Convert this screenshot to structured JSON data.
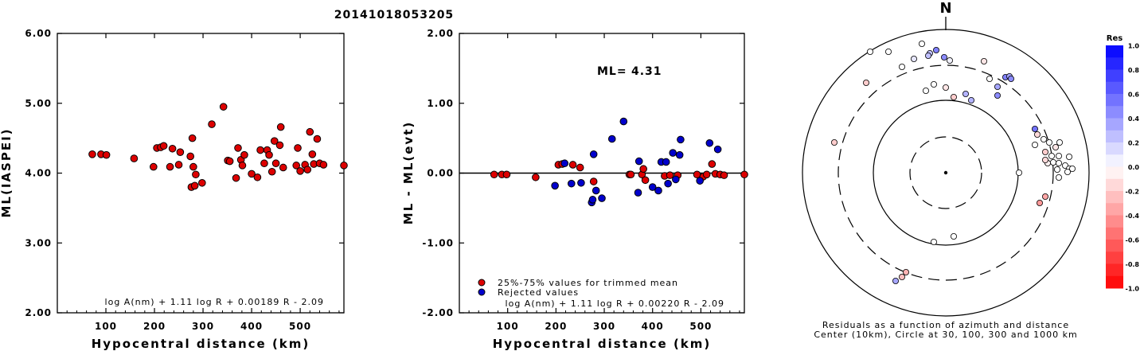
{
  "title": "20141018053205",
  "chart_data": [
    {
      "type": "scatter",
      "id": "left",
      "xlabel": "Hypocentral distance (km)",
      "ylabel": "ML(IASPEI)",
      "xlim": [
        0,
        590
      ],
      "ylim": [
        2.0,
        6.0
      ],
      "xticks": [
        "100",
        "200",
        "300",
        "400",
        "500"
      ],
      "xtick_values": [
        100,
        200,
        300,
        400,
        500
      ],
      "yticks": [
        "2.00",
        "3.00",
        "4.00",
        "5.00",
        "6.00"
      ],
      "ytick_values": [
        2.0,
        3.0,
        4.0,
        5.0,
        6.0
      ],
      "formula": "log A(nm) + 1.11 log R + 0.00189 R - 2.09",
      "color": "#dd0000",
      "points": [
        [
          72,
          4.27
        ],
        [
          90,
          4.27
        ],
        [
          101,
          4.26
        ],
        [
          158,
          4.21
        ],
        [
          198,
          4.09
        ],
        [
          205,
          4.36
        ],
        [
          213,
          4.37
        ],
        [
          219,
          4.39
        ],
        [
          232,
          4.09
        ],
        [
          237,
          4.35
        ],
        [
          250,
          4.12
        ],
        [
          253,
          4.3
        ],
        [
          274,
          4.24
        ],
        [
          276,
          3.8
        ],
        [
          278,
          4.5
        ],
        [
          280,
          4.09
        ],
        [
          283,
          3.82
        ],
        [
          285,
          3.98
        ],
        [
          298,
          3.86
        ],
        [
          318,
          4.7
        ],
        [
          342,
          4.95
        ],
        [
          351,
          4.18
        ],
        [
          355,
          4.17
        ],
        [
          368,
          3.93
        ],
        [
          372,
          4.36
        ],
        [
          378,
          4.19
        ],
        [
          381,
          4.11
        ],
        [
          385,
          4.26
        ],
        [
          400,
          3.99
        ],
        [
          412,
          3.94
        ],
        [
          418,
          4.33
        ],
        [
          426,
          4.14
        ],
        [
          432,
          4.33
        ],
        [
          436,
          4.26
        ],
        [
          442,
          4.02
        ],
        [
          447,
          4.46
        ],
        [
          450,
          4.14
        ],
        [
          458,
          4.4
        ],
        [
          460,
          4.66
        ],
        [
          465,
          4.08
        ],
        [
          492,
          4.11
        ],
        [
          495,
          4.36
        ],
        [
          500,
          4.03
        ],
        [
          510,
          4.12
        ],
        [
          515,
          4.05
        ],
        [
          520,
          4.59
        ],
        [
          525,
          4.27
        ],
        [
          528,
          4.13
        ],
        [
          535,
          4.49
        ],
        [
          540,
          4.14
        ],
        [
          548,
          4.12
        ],
        [
          590,
          4.11
        ]
      ]
    },
    {
      "type": "scatter",
      "id": "middle",
      "xlabel": "Hypocentral distance (km)",
      "ylabel": "ML - ML(evt)",
      "xlim": [
        0,
        590
      ],
      "ylim": [
        -2.0,
        2.0
      ],
      "xticks": [
        "100",
        "200",
        "300",
        "400",
        "500"
      ],
      "xtick_values": [
        100,
        200,
        300,
        400,
        500
      ],
      "yticks": [
        "-2.00",
        "-1.00",
        "0.00",
        "1.00",
        "2.00"
      ],
      "ytick_values": [
        -2.0,
        -1.0,
        0.0,
        1.0,
        2.0
      ],
      "ml_label": "ML=",
      "ml_value": "4.31",
      "legend": [
        "25%-75% values for trimmed mean",
        "Rejected values"
      ],
      "formula": "log A(nm) + 1.11 log R + 0.00220 R - 2.09",
      "series": [
        {
          "name": "25%-75% values for trimmed mean",
          "color": "#dd0000",
          "points": [
            [
              72,
              -0.02
            ],
            [
              88,
              -0.02
            ],
            [
              98,
              -0.02
            ],
            [
              158,
              -0.06
            ],
            [
              205,
              0.12
            ],
            [
              213,
              0.13
            ],
            [
              235,
              0.12
            ],
            [
              250,
              0.08
            ],
            [
              278,
              -0.12
            ],
            [
              352,
              -0.02
            ],
            [
              355,
              -0.02
            ],
            [
              378,
              -0.02
            ],
            [
              381,
              0.06
            ],
            [
              385,
              -0.1
            ],
            [
              425,
              -0.04
            ],
            [
              436,
              -0.03
            ],
            [
              452,
              -0.03
            ],
            [
              492,
              -0.02
            ],
            [
              505,
              -0.05
            ],
            [
              512,
              -0.02
            ],
            [
              523,
              0.13
            ],
            [
              530,
              -0.01
            ],
            [
              540,
              -0.02
            ],
            [
              548,
              -0.03
            ],
            [
              590,
              -0.02
            ]
          ]
        },
        {
          "name": "Rejected values",
          "color": "#0000cc",
          "points": [
            [
              198,
              -0.18
            ],
            [
              218,
              0.14
            ],
            [
              232,
              -0.15
            ],
            [
              252,
              -0.14
            ],
            [
              274,
              -0.42
            ],
            [
              276,
              -0.38
            ],
            [
              278,
              0.27
            ],
            [
              283,
              -0.25
            ],
            [
              295,
              -0.36
            ],
            [
              316,
              0.49
            ],
            [
              340,
              0.74
            ],
            [
              370,
              -0.28
            ],
            [
              372,
              0.17
            ],
            [
              400,
              -0.2
            ],
            [
              412,
              -0.25
            ],
            [
              418,
              0.16
            ],
            [
              428,
              0.16
            ],
            [
              432,
              -0.15
            ],
            [
              442,
              0.29
            ],
            [
              448,
              -0.09
            ],
            [
              456,
              0.26
            ],
            [
              458,
              0.48
            ],
            [
              498,
              -0.11
            ],
            [
              518,
              0.43
            ],
            [
              535,
              0.34
            ]
          ]
        }
      ]
    },
    {
      "type": "scatter",
      "id": "polar",
      "north_label": "N",
      "caption": [
        "Residuals as a function of azimuth and distance",
        "Center (10km), Circle at 30, 100, 300 and 1000 km"
      ],
      "points": [
        [
          -95,
          -152,
          0.0
        ],
        [
          -72,
          -152,
          0.0
        ],
        [
          -55,
          -133,
          0.0
        ],
        [
          -40,
          -143,
          0.1
        ],
        [
          -30,
          -162,
          0.0
        ],
        [
          -20,
          -150,
          0.25
        ],
        [
          -2,
          -145,
          0.45
        ],
        [
          -22,
          -147,
          0.25
        ],
        [
          -12,
          -154,
          0.5
        ],
        [
          -25,
          -103,
          0.0
        ],
        [
          -15,
          -111,
          0.0
        ],
        [
          5,
          -141,
          0.05
        ],
        [
          0,
          -107,
          -0.1
        ],
        [
          10,
          -95,
          -0.2
        ],
        [
          25,
          -99,
          0.3
        ],
        [
          32,
          -91,
          0.3
        ],
        [
          48,
          -140,
          -0.1
        ],
        [
          55,
          -118,
          0.0
        ],
        [
          65,
          -108,
          0.35
        ],
        [
          75,
          -120,
          0.5
        ],
        [
          80,
          -121,
          0.35
        ],
        [
          82,
          -118,
          0.45
        ],
        [
          65,
          -97,
          0.45
        ],
        [
          -100,
          -113,
          -0.2
        ],
        [
          -140,
          -38,
          -0.2
        ],
        [
          112,
          -55,
          0.55
        ],
        [
          115,
          -48,
          -0.15
        ],
        [
          112,
          -35,
          0.0
        ],
        [
          123,
          -42,
          0.0
        ],
        [
          130,
          -38,
          0.0
        ],
        [
          138,
          -32,
          -0.1
        ],
        [
          143,
          -38,
          0.0
        ],
        [
          125,
          -26,
          -0.2
        ],
        [
          133,
          -21,
          0.0
        ],
        [
          142,
          -21,
          0.0
        ],
        [
          155,
          -20,
          0.0
        ],
        [
          128,
          -12,
          -0.05
        ],
        [
          135,
          -13,
          0.0
        ],
        [
          142,
          -12,
          0.0
        ],
        [
          150,
          -9,
          0.0
        ],
        [
          155,
          -5,
          0.0
        ],
        [
          159,
          -5,
          0.0
        ],
        [
          140,
          -4,
          0.0
        ],
        [
          153,
          -1,
          0.0
        ],
        [
          142,
          6,
          0.0
        ],
        [
          125,
          -16,
          -0.15
        ],
        [
          125,
          30,
          -0.35
        ],
        [
          118,
          38,
          -0.4
        ],
        [
          92,
          0,
          0.0
        ],
        [
          10,
          80,
          0.0
        ],
        [
          -15,
          87,
          0.0
        ],
        [
          -50,
          125,
          -0.3
        ],
        [
          -55,
          131,
          -0.25
        ],
        [
          -63,
          136,
          0.35
        ]
      ]
    }
  ],
  "colorbar": {
    "title": "Res",
    "labels": [
      "1.0",
      "0.8",
      "0.6",
      "0.4",
      "0.2",
      "0.0",
      "-0.2",
      "-0.4",
      "-0.6",
      "-0.8",
      "-1.0"
    ],
    "values": [
      1.0,
      0.8,
      0.6,
      0.4,
      0.2,
      0.0,
      -0.2,
      -0.4,
      -0.6,
      -0.8,
      -1.0
    ]
  }
}
